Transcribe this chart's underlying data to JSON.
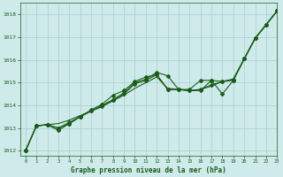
{
  "title": "Graphe pression niveau de la mer (hPa)",
  "bg_color": "#ceeaea",
  "grid_color": "#aacece",
  "line_color": "#1a5c1a",
  "xlim": [
    -0.5,
    23
  ],
  "ylim": [
    1011.8,
    1018.5
  ],
  "yticks": [
    1012,
    1013,
    1014,
    1015,
    1016,
    1017,
    1018
  ],
  "xticks": [
    0,
    1,
    2,
    3,
    4,
    5,
    6,
    7,
    8,
    9,
    10,
    11,
    12,
    13,
    14,
    15,
    16,
    17,
    18,
    19,
    20,
    21,
    22,
    23
  ],
  "series": {
    "straight": [
      1012.0,
      1013.1,
      1013.15,
      1013.2,
      1013.35,
      1013.55,
      1013.75,
      1013.95,
      1014.2,
      1014.45,
      1014.75,
      1015.0,
      1015.25,
      1014.75,
      1014.7,
      1014.65,
      1014.7,
      1014.85,
      1015.05,
      1015.15,
      1016.05,
      1016.95,
      1017.55,
      1018.15
    ],
    "line_a": [
      1012.0,
      1013.1,
      1013.15,
      1013.0,
      1013.25,
      1013.5,
      1013.75,
      1014.0,
      1014.25,
      1014.55,
      1015.0,
      1015.15,
      1015.45,
      1015.3,
      1014.7,
      1014.65,
      1014.65,
      1015.1,
      1015.05,
      1015.15,
      1016.05,
      1016.95,
      1017.55,
      1018.15
    ],
    "line_b": [
      1012.0,
      1013.1,
      1013.15,
      1012.9,
      1013.2,
      1013.5,
      1013.8,
      1014.05,
      1014.45,
      1014.65,
      1015.05,
      1015.25,
      1015.35,
      1014.7,
      1014.7,
      1014.7,
      1015.1,
      1015.1,
      1014.5,
      1015.1,
      1016.05,
      1016.95,
      1017.55,
      1018.15
    ],
    "line_c": [
      1012.0,
      1013.1,
      1013.15,
      1013.0,
      1013.2,
      1013.5,
      1013.75,
      1013.95,
      1014.25,
      1014.5,
      1014.95,
      1015.1,
      1015.35,
      1014.7,
      1014.7,
      1014.65,
      1014.7,
      1014.9,
      1015.05,
      1015.1,
      1016.05,
      1016.95,
      1017.55,
      1018.15
    ]
  }
}
